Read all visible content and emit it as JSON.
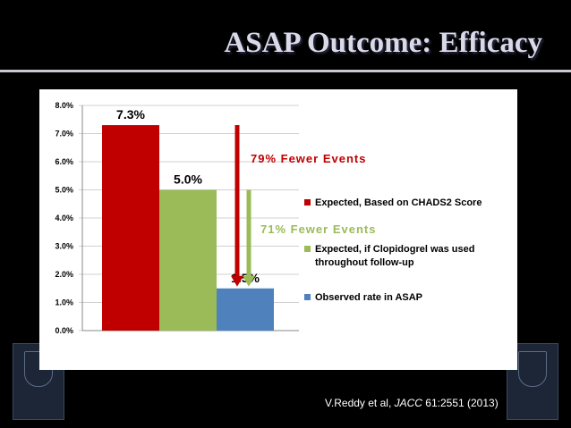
{
  "slide": {
    "title": "ASAP Outcome: Efficacy",
    "citation_prefix": "V.Reddy et al, ",
    "citation_journal": "JACC",
    "citation_suffix": " 61:2551 (2013)"
  },
  "chart_data": {
    "type": "bar",
    "categories": [
      "Expected, Based on CHADS2 Score",
      "Expected, if Clopidogrel was used throughout follow-up",
      "Observed rate in ASAP"
    ],
    "values": [
      7.3,
      5.0,
      1.5
    ],
    "value_labels": [
      "7.3%",
      "5.0%",
      "1.5%"
    ],
    "colors": [
      "#c00000",
      "#9bbb59",
      "#4f81bd"
    ],
    "legend": [
      "Expected, Based on CHADS2 Score",
      "Expected, if Clopidogrel was used throughout follow-up",
      "Observed rate in ASAP"
    ],
    "legend_position": "right",
    "ylim": [
      0,
      8
    ],
    "y_ticks": [
      "0.0%",
      "1.0%",
      "2.0%",
      "3.0%",
      "4.0%",
      "5.0%",
      "6.0%",
      "7.0%",
      "8.0%"
    ],
    "grid": true,
    "annotations": [
      {
        "text": "79% Fewer Events",
        "from": 7.3,
        "to": 1.5,
        "color": "#c00000"
      },
      {
        "text": "71% Fewer Events",
        "from": 5.0,
        "to": 1.5,
        "color": "#9bbb59"
      }
    ]
  }
}
